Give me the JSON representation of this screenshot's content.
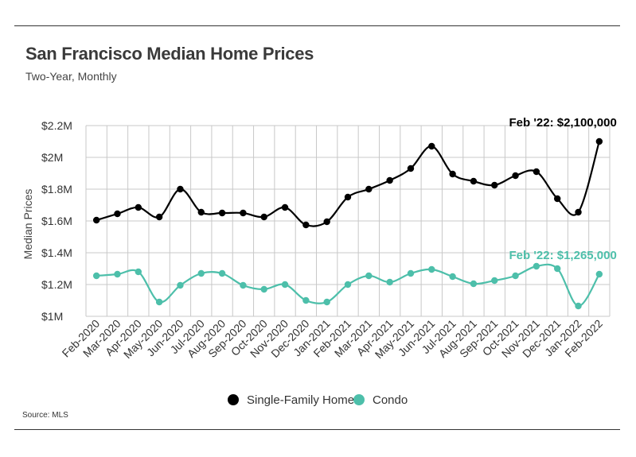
{
  "header": {
    "title": "San Francisco Median Home Prices",
    "subtitle": "Two-Year, Monthly"
  },
  "footer": {
    "source": "Source:  MLS"
  },
  "colors": {
    "single_family": "#000000",
    "condo": "#4dbfaa",
    "grid": "#c8c8c8"
  },
  "chart_data": {
    "type": "line",
    "ylabel": "Median Prices",
    "ylim": [
      1000000,
      2200000
    ],
    "yticks": [
      {
        "value": 1000000,
        "label": "$1M"
      },
      {
        "value": 1200000,
        "label": "$1.2M"
      },
      {
        "value": 1400000,
        "label": "$1.4M"
      },
      {
        "value": 1600000,
        "label": "$1.6M"
      },
      {
        "value": 1800000,
        "label": "$1.8M"
      },
      {
        "value": 2000000,
        "label": "$2M"
      },
      {
        "value": 2200000,
        "label": "$2.2M"
      }
    ],
    "grid": true,
    "categories": [
      "Feb-2020",
      "Mar-2020",
      "Apr-2020",
      "May-2020",
      "Jun-2020",
      "Jul-2020",
      "Aug-2020",
      "Sep-2020",
      "Oct-2020",
      "Nov-2020",
      "Dec-2020",
      "Jan-2021",
      "Feb-2021",
      "Mar-2021",
      "Apr-2021",
      "May-2021",
      "Jun-2021",
      "Jul-2021",
      "Aug-2021",
      "Sep-2021",
      "Oct-2021",
      "Nov-2021",
      "Dec-2021",
      "Jan-2022",
      "Feb-2022"
    ],
    "series": [
      {
        "name": "Single-Family Home",
        "color": "#000000",
        "values": [
          1605000,
          1645000,
          1685000,
          1625000,
          1800000,
          1655000,
          1650000,
          1650000,
          1625000,
          1685000,
          1575000,
          1595000,
          1750000,
          1800000,
          1855000,
          1930000,
          2070000,
          1895000,
          1850000,
          1825000,
          1885000,
          1910000,
          1740000,
          1655000,
          2100000
        ]
      },
      {
        "name": "Condo",
        "color": "#4dbfaa",
        "values": [
          1255000,
          1265000,
          1280000,
          1090000,
          1195000,
          1270000,
          1270000,
          1195000,
          1170000,
          1200000,
          1100000,
          1090000,
          1200000,
          1255000,
          1215000,
          1270000,
          1295000,
          1250000,
          1205000,
          1225000,
          1255000,
          1315000,
          1300000,
          1065000,
          1265000
        ]
      }
    ],
    "annotations": [
      {
        "series": 0,
        "index": 24,
        "text": "Feb '22: $2,100,000"
      },
      {
        "series": 1,
        "index": 24,
        "text": "Feb '22: $1,265,000"
      }
    ],
    "legend": {
      "position": "bottom-center"
    }
  }
}
